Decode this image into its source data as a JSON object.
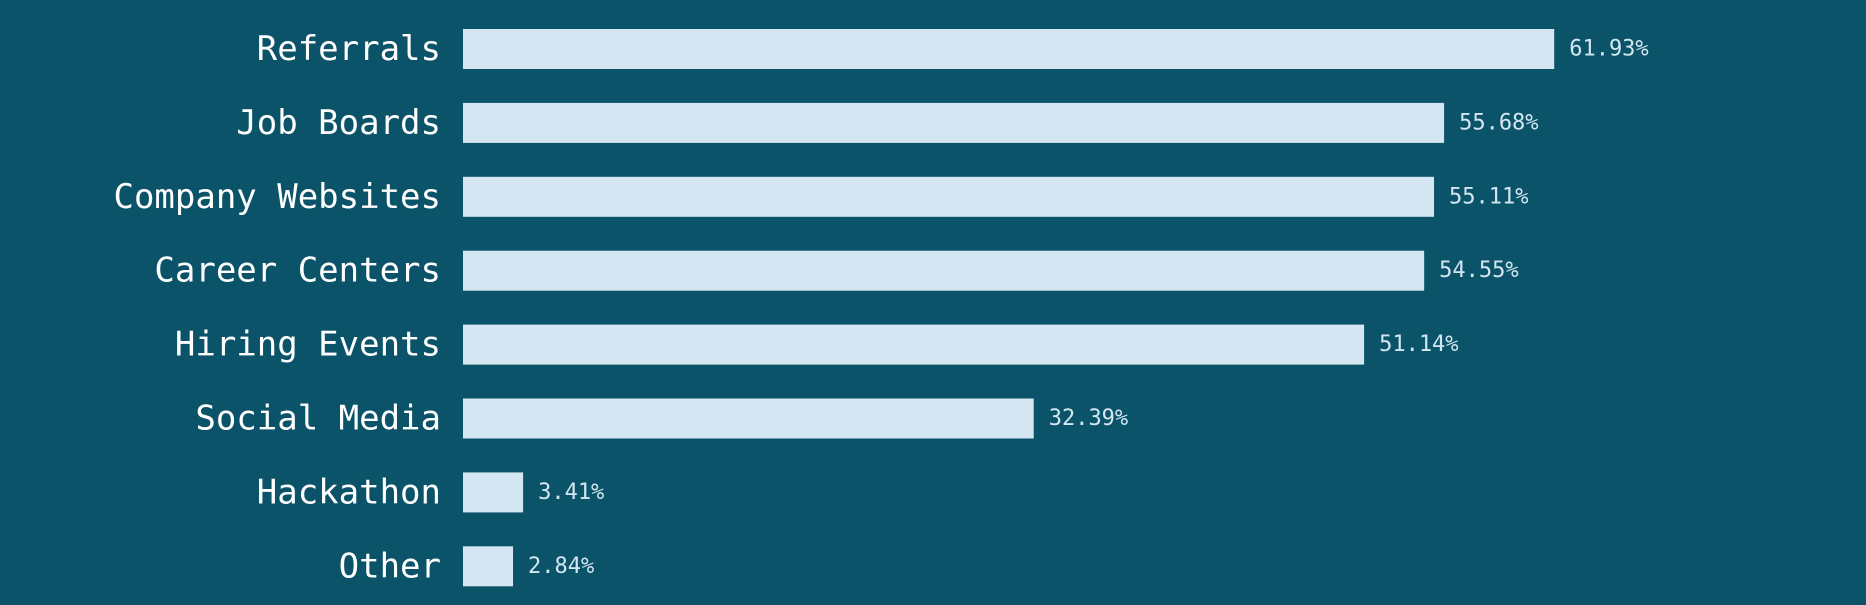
{
  "chart_data": {
    "type": "bar",
    "orientation": "horizontal",
    "categories": [
      "Referrals",
      "Job Boards",
      "Company Websites",
      "Career Centers",
      "Hiring Events",
      "Social Media",
      "Hackathon",
      "Other"
    ],
    "values": [
      61.93,
      55.68,
      55.11,
      54.55,
      51.14,
      32.39,
      3.41,
      2.84
    ],
    "value_labels": [
      "61.93%",
      "55.68%",
      "55.11%",
      "54.55%",
      "51.14%",
      "32.39%",
      "3.41%",
      "2.84%"
    ],
    "title": "",
    "xlabel": "",
    "ylabel": "",
    "xlim": [
      0,
      100
    ],
    "grid": false,
    "legend": "none",
    "colors": {
      "background": "#0b5369",
      "bar": "#d4e6f1",
      "category_text": "#ffffff",
      "value_text": "#d4e6f1"
    }
  }
}
